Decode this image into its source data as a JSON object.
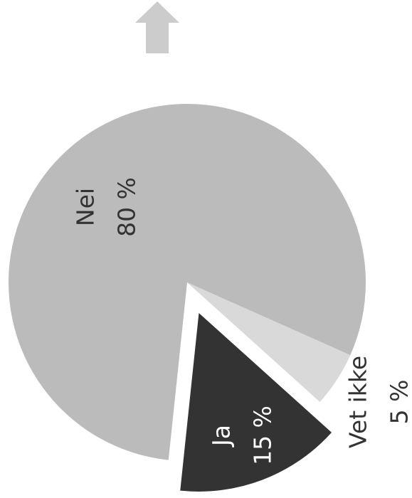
{
  "chart_data": {
    "type": "pie",
    "categories": [
      "Ja",
      "Vet ikke",
      "Nei"
    ],
    "values": [
      15,
      5,
      80
    ],
    "value_labels": [
      "15 %",
      "5 %",
      "80 %"
    ],
    "colors": [
      "#333333",
      "#d9d9d9",
      "#bbbbbb"
    ]
  }
}
